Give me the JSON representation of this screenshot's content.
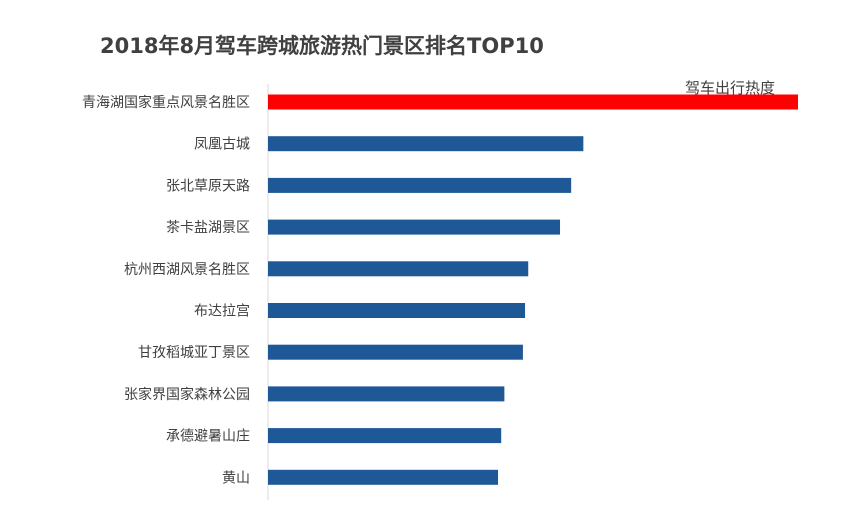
{
  "chart_data": {
    "type": "bar",
    "orientation": "horizontal",
    "title": "2018年8月驾车跨城旅游热门景区排名TOP10",
    "categories": [
      "青海湖国家重点风景名胜区",
      "凤凰古城",
      "张北草原天路",
      "茶卡盐湖景区",
      "杭州西湖风景名胜区",
      "布达拉宫",
      "甘孜稻城亚丁景区",
      "张家界国家森林公园",
      "承德避暑山庄",
      "黄山"
    ],
    "series": [
      {
        "name": "驾车出行热度",
        "values": [
          100,
          59.5,
          57.2,
          55.1,
          49.1,
          48.5,
          48.1,
          44.6,
          44.0,
          43.4
        ]
      }
    ],
    "xlim": [
      0,
      100
    ],
    "colors": {
      "top": "#ff0000",
      "default": "#1f5896"
    },
    "grid": false,
    "legend": "top-right"
  }
}
